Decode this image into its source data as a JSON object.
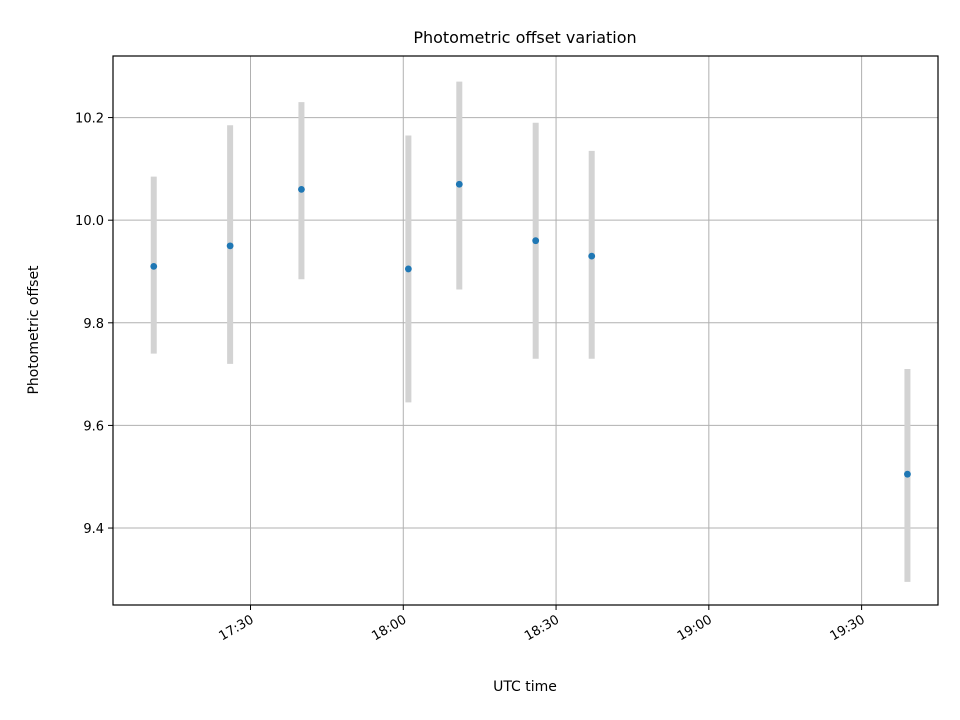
{
  "chart_data": {
    "type": "scatter",
    "title": "Photometric offset variation",
    "xlabel": "UTC time",
    "ylabel": "Photometric offset",
    "x_tick_labels": [
      "17:30",
      "18:00",
      "18:30",
      "19:00",
      "19:30"
    ],
    "y_tick_labels": [
      "9.4",
      "9.6",
      "9.8",
      "10.0",
      "10.2"
    ],
    "xlim": [
      "17:03",
      "19:45"
    ],
    "ylim": [
      9.25,
      10.32
    ],
    "grid": true,
    "series": [
      {
        "x": [
          "17:11",
          "17:26",
          "17:40",
          "18:01",
          "18:11",
          "18:26",
          "18:37",
          "19:39"
        ],
        "y": [
          9.91,
          9.95,
          10.06,
          9.905,
          10.07,
          9.96,
          9.93,
          9.505
        ],
        "y_err_low": [
          9.74,
          9.72,
          9.885,
          9.645,
          9.865,
          9.73,
          9.73,
          9.295
        ],
        "y_err_high": [
          10.085,
          10.185,
          10.23,
          10.165,
          10.27,
          10.19,
          10.135,
          9.71
        ]
      }
    ],
    "colors": {
      "points": "#1f77b4",
      "errorbars": "#d3d3d3",
      "grid": "#b0b0b0"
    }
  }
}
